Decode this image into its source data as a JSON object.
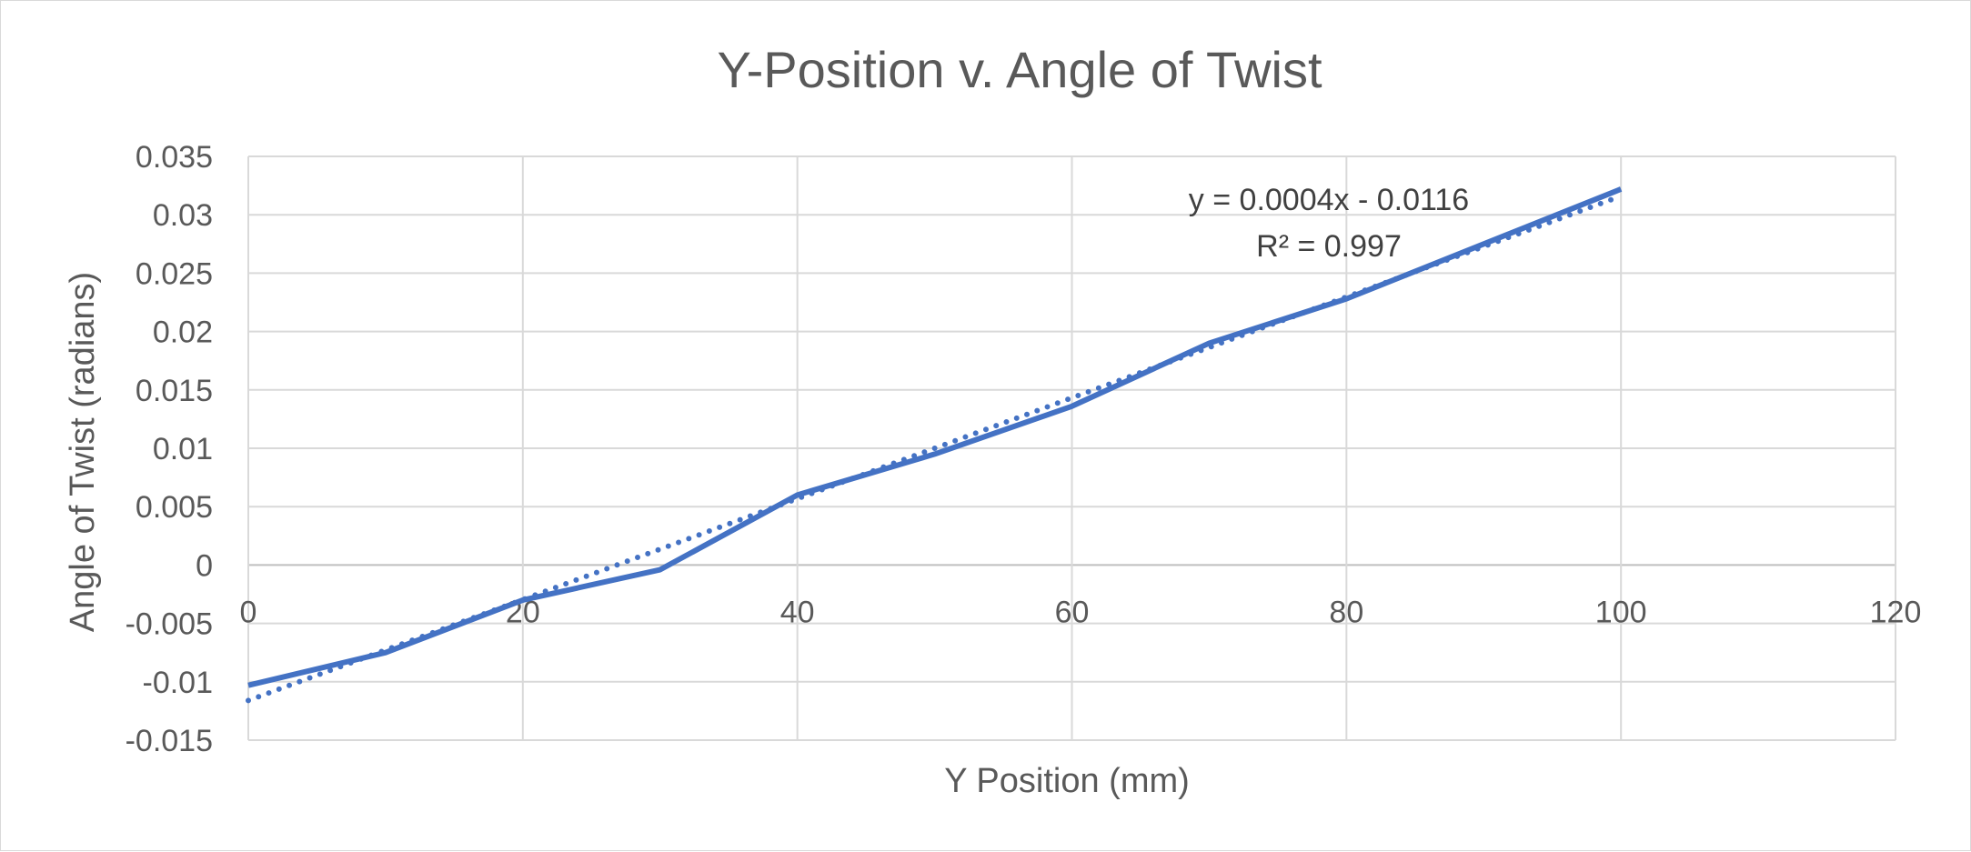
{
  "chart_data": {
    "type": "line",
    "title": "Y-Position v. Angle of Twist",
    "xlabel": "Y Position (mm)",
    "ylabel": "Angle of Twist (radians)",
    "xlim": [
      0,
      120
    ],
    "ylim": [
      -0.015,
      0.035
    ],
    "x_ticks": [
      "0",
      "20",
      "40",
      "60",
      "80",
      "100",
      "120"
    ],
    "y_ticks": [
      "-0.015",
      "-0.01",
      "-0.005",
      "0",
      "0.005",
      "0.01",
      "0.015",
      "0.02",
      "0.025",
      "0.03",
      "0.035"
    ],
    "grid": true,
    "legend": "none",
    "series": [
      {
        "x": [
          0,
          10,
          20,
          30,
          40,
          50,
          60,
          70,
          80,
          90,
          100
        ],
        "y": [
          -0.0103,
          -0.0075,
          -0.003,
          -0.0004,
          0.006,
          0.0095,
          0.0136,
          0.019,
          0.0228,
          0.0275,
          0.0322
        ],
        "color": "#4472c4",
        "style": "solid"
      }
    ],
    "trendline": {
      "kind": "linear",
      "color": "#4472c4",
      "style": "dotted",
      "x_range": [
        0,
        100
      ],
      "equation": "y = 0.0004x - 0.0116",
      "r_squared": "R² = 0.997",
      "y_start": -0.0116,
      "y_end": 0.0316
    }
  }
}
